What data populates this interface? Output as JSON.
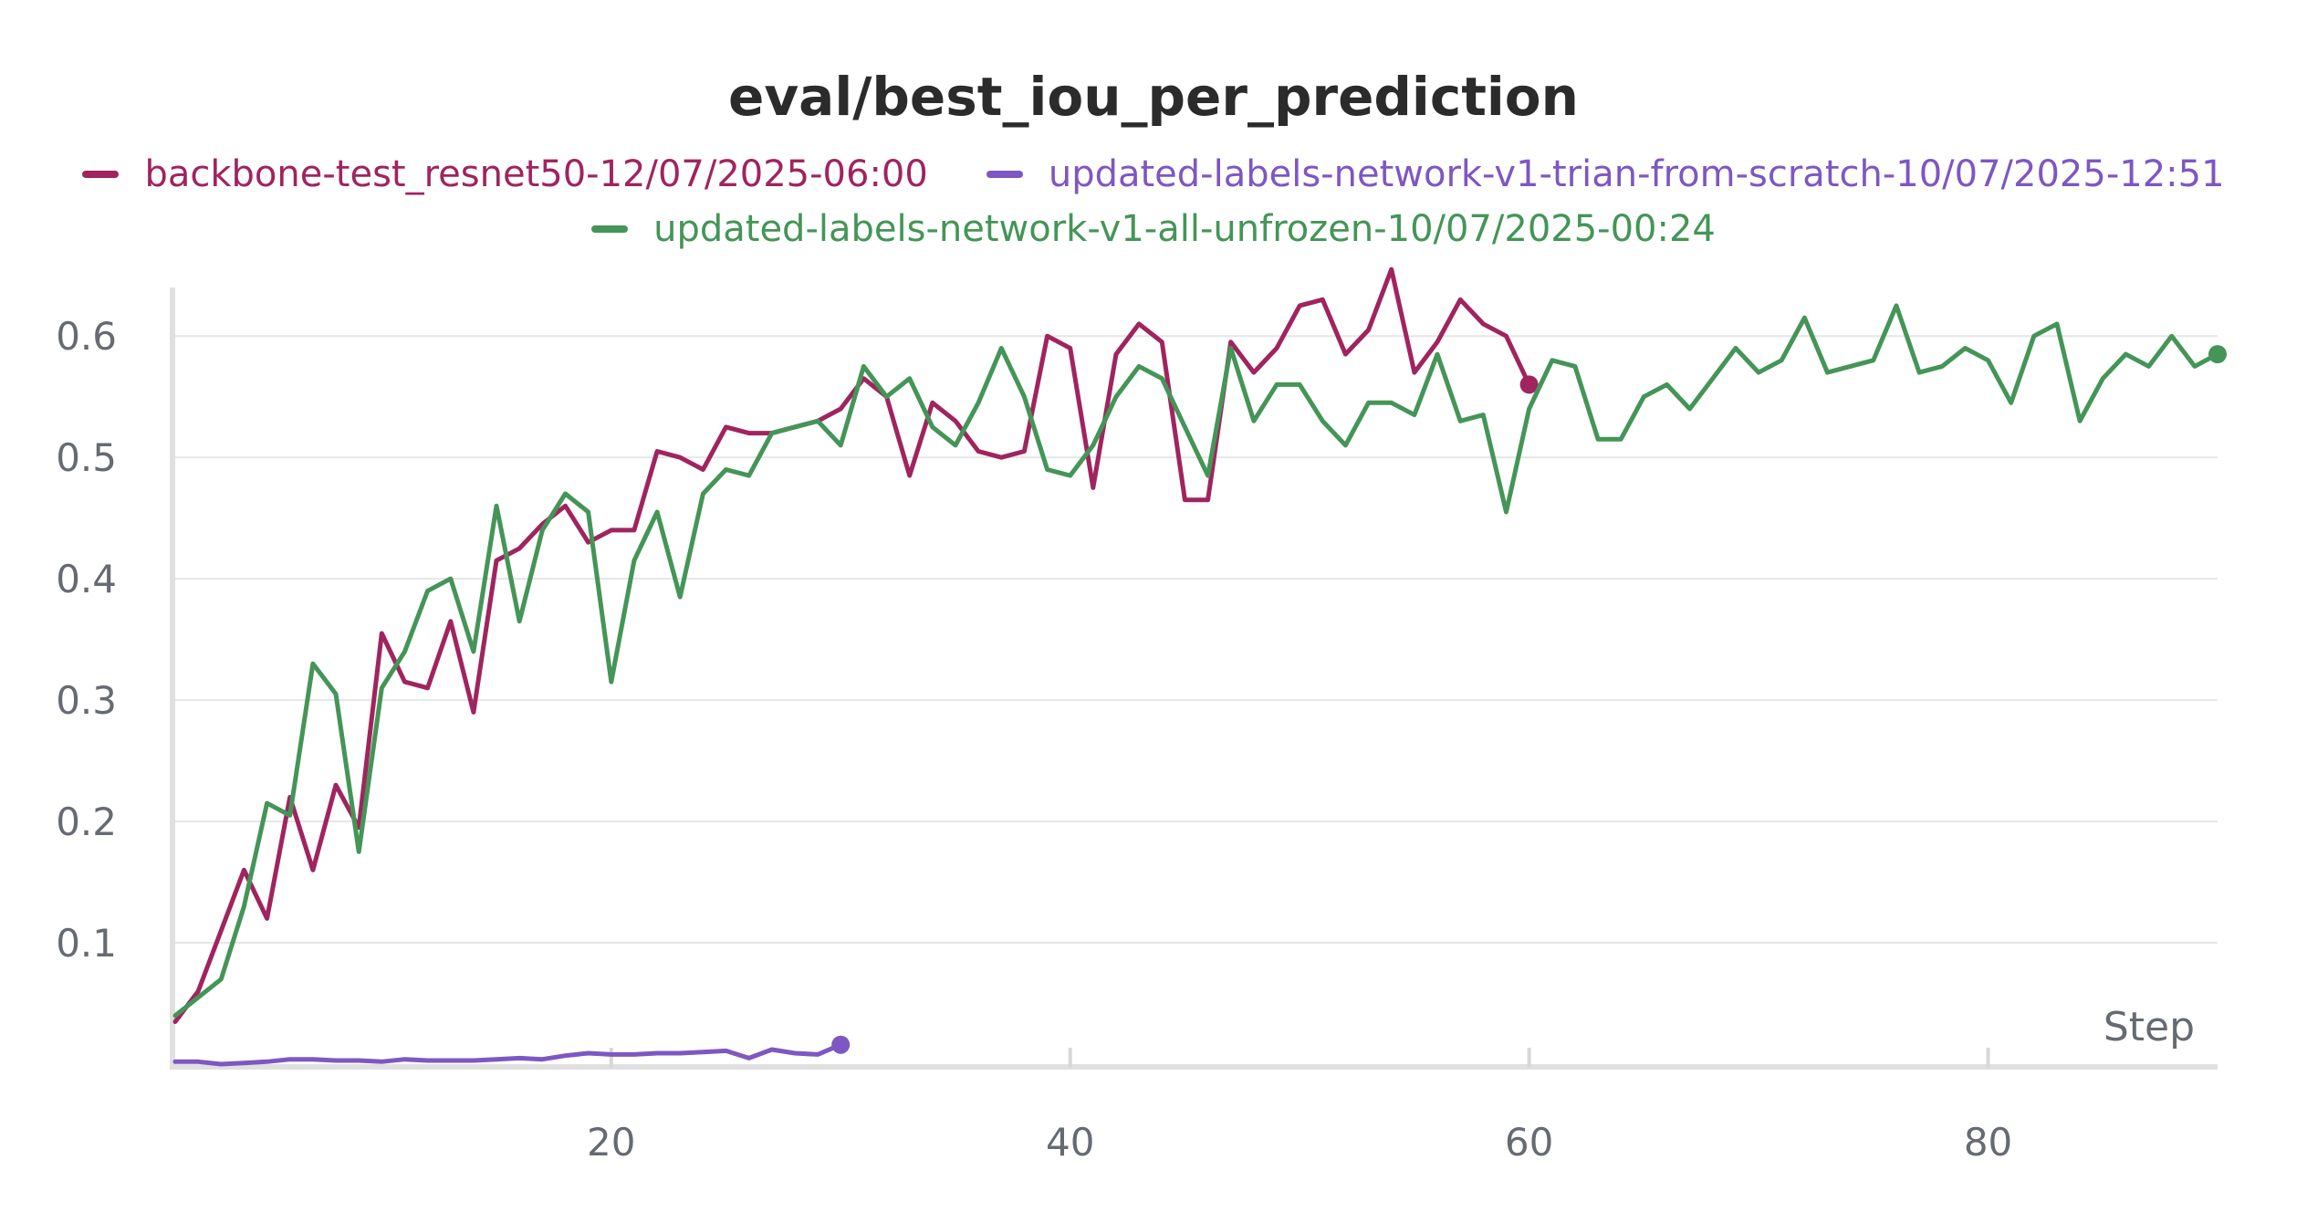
{
  "chart_data": {
    "type": "line",
    "title": "eval/best_iou_per_prediction",
    "xlabel": "Step",
    "ylabel": "",
    "xlim": [
      1,
      90
    ],
    "ylim": [
      0,
      0.64
    ],
    "x_ticks": [
      20,
      40,
      60,
      80
    ],
    "y_ticks": [
      0.1,
      0.2,
      0.3,
      0.4,
      0.5,
      0.6
    ],
    "grid": true,
    "legend_position": "top",
    "series": [
      {
        "name": "backbone-test_resnet50-12/07/2025-06:00",
        "color": "#a0245e",
        "x": [
          1,
          2,
          3,
          4,
          5,
          6,
          7,
          8,
          9,
          10,
          11,
          12,
          13,
          14,
          15,
          16,
          17,
          18,
          19,
          20,
          21,
          22,
          23,
          24,
          25,
          26,
          27,
          28,
          29,
          30,
          31,
          32,
          33,
          34,
          35,
          36,
          37,
          38,
          39,
          40,
          41,
          42,
          43,
          44,
          45,
          46,
          47,
          48,
          49,
          50,
          51,
          52,
          53,
          54,
          55,
          56,
          57,
          58,
          59,
          60
        ],
        "y": [
          0.035,
          0.06,
          0.11,
          0.16,
          0.12,
          0.22,
          0.16,
          0.23,
          0.195,
          0.355,
          0.315,
          0.31,
          0.365,
          0.29,
          0.415,
          0.425,
          0.445,
          0.46,
          0.43,
          0.44,
          0.44,
          0.505,
          0.5,
          0.49,
          0.525,
          0.52,
          0.52,
          0.525,
          0.53,
          0.54,
          0.565,
          0.55,
          0.485,
          0.545,
          0.53,
          0.505,
          0.5,
          0.505,
          0.6,
          0.59,
          0.475,
          0.585,
          0.61,
          0.595,
          0.465,
          0.465,
          0.595,
          0.57,
          0.59,
          0.625,
          0.63,
          0.585,
          0.605,
          0.655,
          0.57,
          0.595,
          0.63,
          0.61,
          0.6,
          0.56
        ]
      },
      {
        "name": "updated-labels-network-v1-trian-from-scratch-10/07/2025-12:51",
        "color": "#7e57c2",
        "x": [
          1,
          2,
          3,
          4,
          5,
          6,
          7,
          8,
          9,
          10,
          11,
          12,
          13,
          14,
          15,
          16,
          17,
          18,
          19,
          20,
          21,
          22,
          23,
          24,
          25,
          26,
          27,
          28,
          29,
          30
        ],
        "y": [
          0.002,
          0.002,
          0.0,
          0.001,
          0.002,
          0.004,
          0.004,
          0.003,
          0.003,
          0.002,
          0.004,
          0.003,
          0.003,
          0.003,
          0.004,
          0.005,
          0.004,
          0.007,
          0.009,
          0.008,
          0.008,
          0.009,
          0.009,
          0.01,
          0.011,
          0.005,
          0.012,
          0.009,
          0.008,
          0.016
        ]
      },
      {
        "name": "updated-labels-network-v1-all-unfrozen-10/07/2025-00:24",
        "color": "#449557",
        "x": [
          1,
          2,
          3,
          4,
          5,
          6,
          7,
          8,
          9,
          10,
          11,
          12,
          13,
          14,
          15,
          16,
          17,
          18,
          19,
          20,
          21,
          22,
          23,
          24,
          25,
          26,
          27,
          28,
          29,
          30,
          31,
          32,
          33,
          34,
          35,
          36,
          37,
          38,
          39,
          40,
          41,
          42,
          43,
          44,
          45,
          46,
          47,
          48,
          49,
          50,
          51,
          52,
          53,
          54,
          55,
          56,
          57,
          58,
          59,
          60,
          61,
          62,
          63,
          64,
          65,
          66,
          67,
          68,
          69,
          70,
          71,
          72,
          73,
          74,
          75,
          76,
          77,
          78,
          79,
          80,
          81,
          82,
          83,
          84,
          85,
          86,
          87,
          88,
          89,
          90
        ],
        "y": [
          0.04,
          0.055,
          0.07,
          0.13,
          0.215,
          0.205,
          0.33,
          0.305,
          0.175,
          0.31,
          0.34,
          0.39,
          0.4,
          0.34,
          0.46,
          0.365,
          0.44,
          0.47,
          0.455,
          0.315,
          0.415,
          0.455,
          0.385,
          0.47,
          0.49,
          0.485,
          0.52,
          0.525,
          0.53,
          0.51,
          0.575,
          0.55,
          0.565,
          0.525,
          0.51,
          0.545,
          0.59,
          0.55,
          0.49,
          0.485,
          0.51,
          0.55,
          0.575,
          0.565,
          0.525,
          0.485,
          0.59,
          0.53,
          0.56,
          0.56,
          0.53,
          0.51,
          0.545,
          0.545,
          0.535,
          0.585,
          0.53,
          0.535,
          0.455,
          0.54,
          0.58,
          0.575,
          0.515,
          0.515,
          0.55,
          0.56,
          0.54,
          0.565,
          0.59,
          0.57,
          0.58,
          0.615,
          0.57,
          0.575,
          0.58,
          0.625,
          0.57,
          0.575,
          0.59,
          0.58,
          0.545,
          0.6,
          0.61,
          0.53,
          0.565,
          0.585,
          0.575,
          0.6,
          0.575,
          0.585
        ]
      }
    ]
  }
}
